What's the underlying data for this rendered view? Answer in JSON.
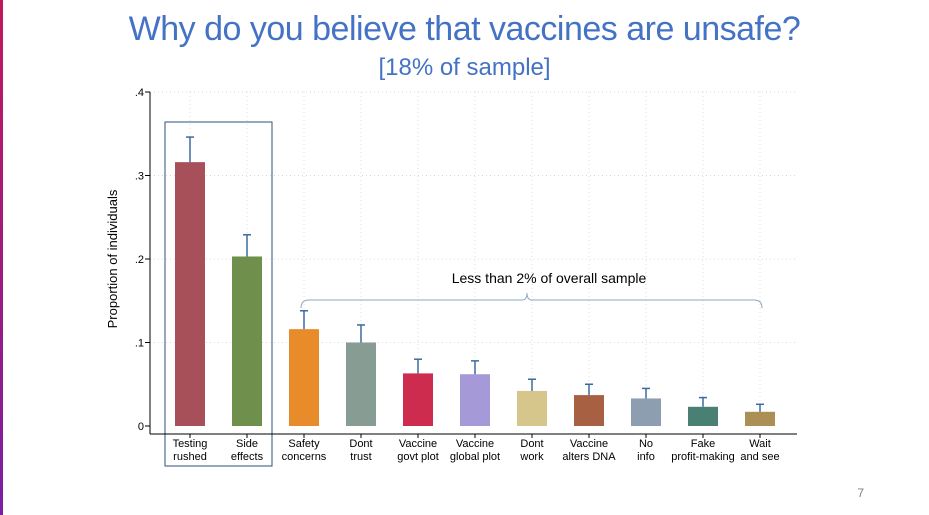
{
  "slide": {
    "title": "Why do you believe that vaccines are unsafe?",
    "subtitle": "[18% of sample]",
    "page_number": "7"
  },
  "chart_data": {
    "type": "bar",
    "title": "Why do you believe that vaccines are unsafe?",
    "subtitle": "[18% of sample]",
    "xlabel": "",
    "ylabel": "Proportion of individuals",
    "ylim": [
      0,
      0.4
    ],
    "yticks": [
      0,
      0.1,
      0.2,
      0.3,
      0.4
    ],
    "ytick_labels": [
      "0",
      ".1",
      ".2",
      ".3",
      ".4"
    ],
    "grid": true,
    "categories": [
      [
        "Testing",
        "rushed"
      ],
      [
        "Side",
        "effects"
      ],
      [
        "Safety",
        "concerns"
      ],
      [
        "Dont",
        "trust"
      ],
      [
        "Vaccine",
        "govt plot"
      ],
      [
        "Vaccine",
        "global plot"
      ],
      [
        "Dont",
        "work"
      ],
      [
        "Vaccine",
        "alters DNA"
      ],
      [
        "No",
        "info"
      ],
      [
        "Fake",
        "profit-making"
      ],
      [
        "Wait",
        "and see"
      ]
    ],
    "values": [
      0.316,
      0.203,
      0.116,
      0.1,
      0.063,
      0.062,
      0.042,
      0.037,
      0.033,
      0.023,
      0.017
    ],
    "error_upper": [
      0.346,
      0.229,
      0.138,
      0.121,
      0.08,
      0.078,
      0.056,
      0.05,
      0.045,
      0.034,
      0.026
    ],
    "colors": [
      "#a8505a",
      "#6f8f4c",
      "#e88c2b",
      "#879c93",
      "#cd2c4f",
      "#a599d8",
      "#d6c68c",
      "#a76041",
      "#8d9eb1",
      "#4a7f73",
      "#ab8f55"
    ],
    "error_color": "#3b6aa0",
    "annotation": "Less than 2% of overall sample",
    "highlight_box": {
      "from_index": 0,
      "to_index": 1,
      "color": "#2e5077"
    }
  }
}
